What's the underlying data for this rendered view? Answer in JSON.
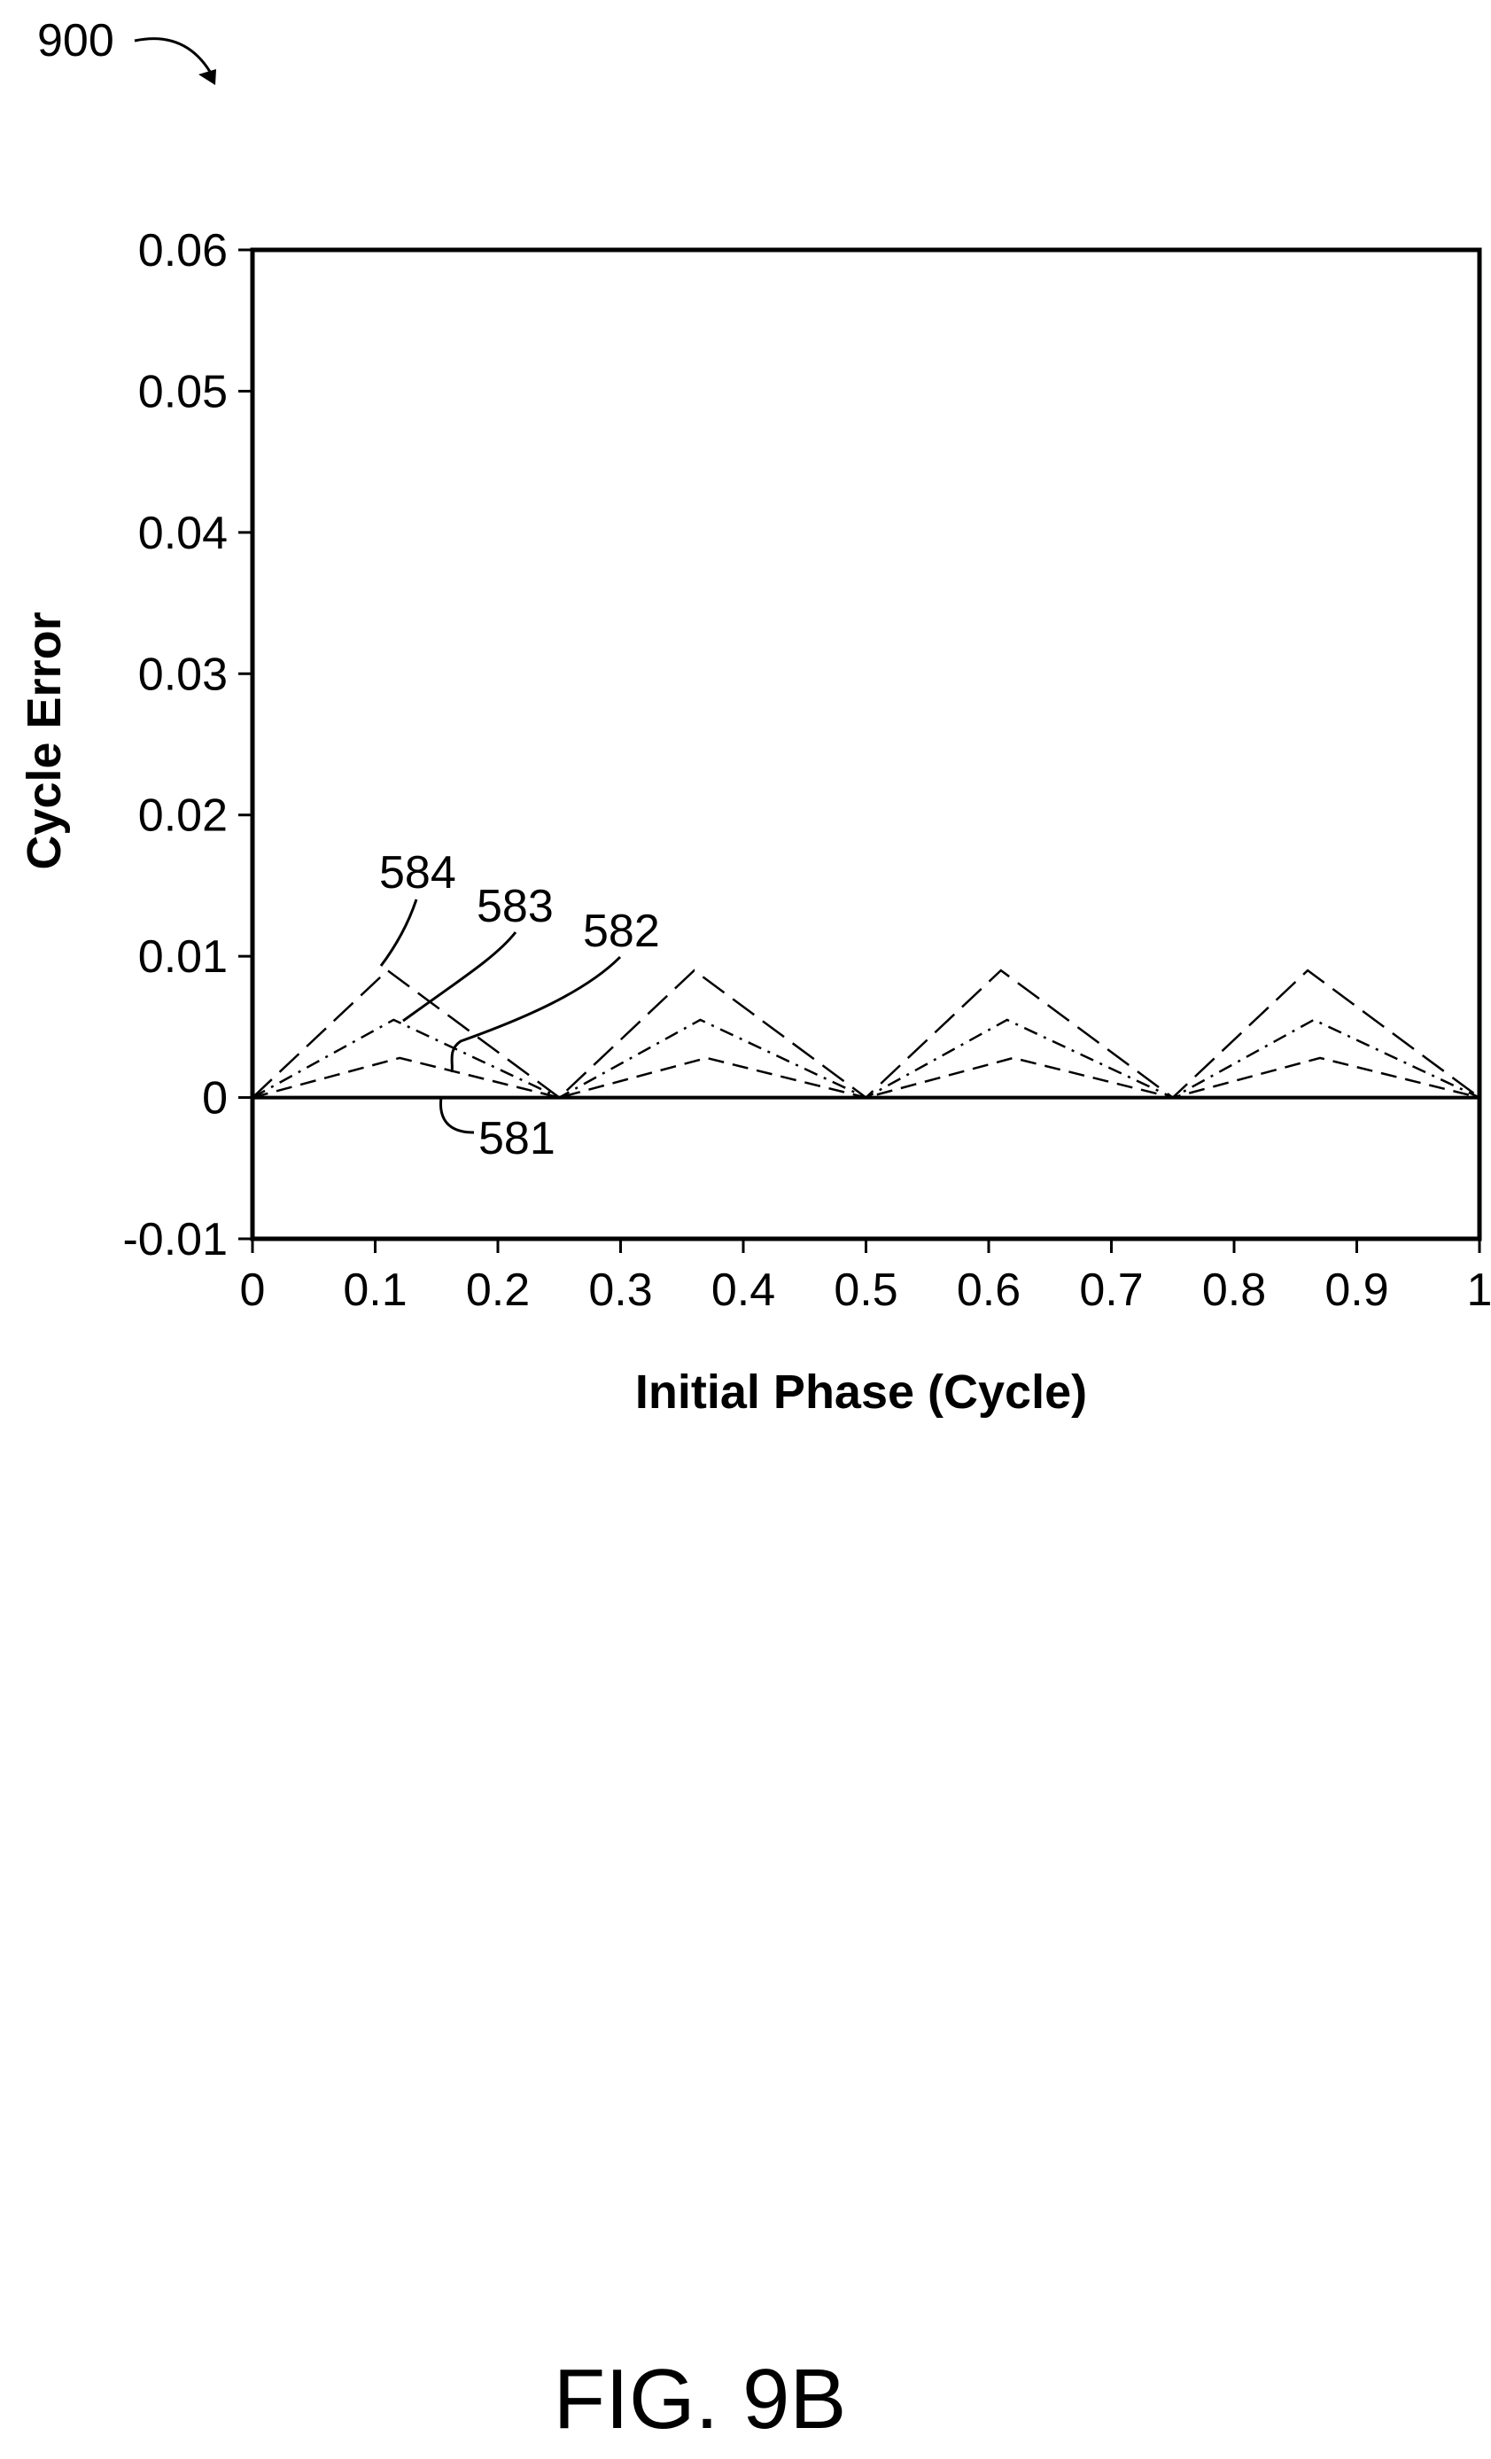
{
  "figure": {
    "reference_number": "900",
    "caption": "FIG. 9B"
  },
  "chart_data": {
    "type": "line",
    "xlabel": "Initial Phase (Cycle)",
    "ylabel": "Cycle Error",
    "xlim": [
      0,
      1
    ],
    "ylim": [
      -0.01,
      0.06
    ],
    "x_ticks": [
      0,
      0.1,
      0.2,
      0.3,
      0.4,
      0.5,
      0.6,
      0.7,
      0.8,
      0.9,
      1
    ],
    "x_tick_labels": [
      "0",
      "0.1",
      "0.2",
      "0.3",
      "0.4",
      "0.5",
      "0.6",
      "0.7",
      "0.8",
      "0.9",
      "1"
    ],
    "y_ticks": [
      -0.01,
      0,
      0.01,
      0.02,
      0.03,
      0.04,
      0.05,
      0.06
    ],
    "y_tick_labels": [
      "-0.01",
      "0",
      "0.01",
      "0.02",
      "0.03",
      "0.04",
      "0.05",
      "0.06"
    ],
    "grid": false,
    "series": [
      {
        "name": "581",
        "line_style": "solid",
        "x": [
          0,
          0.25,
          0.5,
          0.75,
          1
        ],
        "y": [
          0,
          0,
          0,
          0,
          0
        ]
      },
      {
        "name": "582",
        "line_style": "dashed",
        "x": [
          0,
          0.12,
          0.25,
          0.37,
          0.5,
          0.62,
          0.75,
          0.87,
          1
        ],
        "y": [
          0,
          0.0028,
          0,
          0.0028,
          0,
          0.0028,
          0,
          0.0028,
          0
        ]
      },
      {
        "name": "583",
        "line_style": "dash-dot",
        "x": [
          0,
          0.115,
          0.25,
          0.365,
          0.5,
          0.615,
          0.75,
          0.865,
          1
        ],
        "y": [
          0,
          0.0055,
          0,
          0.0055,
          0,
          0.0055,
          0,
          0.0055,
          0
        ]
      },
      {
        "name": "584",
        "line_style": "long-dash",
        "x": [
          0,
          0.11,
          0.25,
          0.36,
          0.5,
          0.61,
          0.75,
          0.86,
          1
        ],
        "y": [
          0,
          0.009,
          0,
          0.009,
          0,
          0.009,
          0,
          0.009,
          0
        ]
      }
    ],
    "annotations": [
      "584",
      "583",
      "582",
      "581"
    ],
    "colors": {
      "ink": "#000000",
      "background": "#ffffff"
    }
  }
}
